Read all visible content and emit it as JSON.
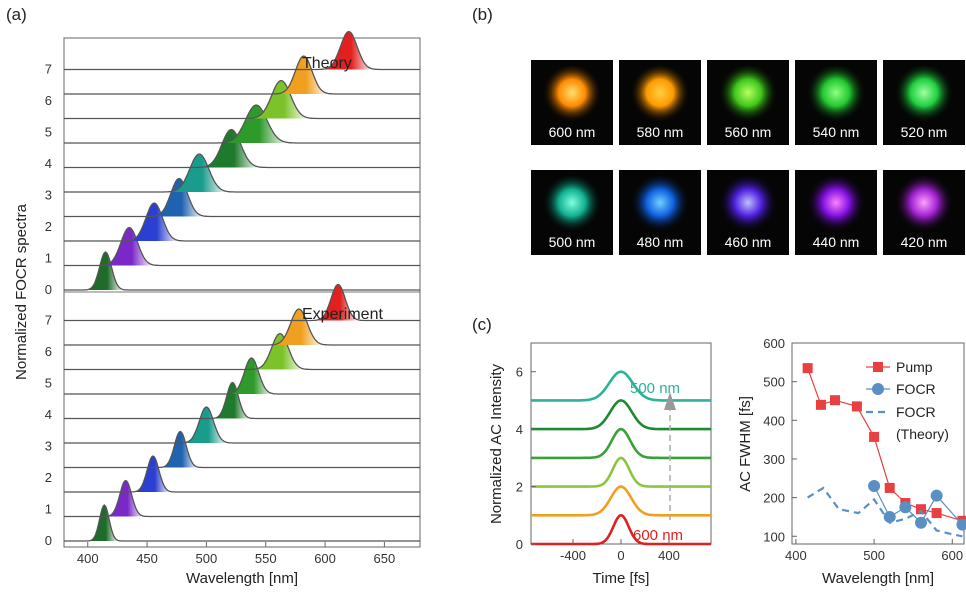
{
  "panels": {
    "a": "(a)",
    "b": "(b)",
    "c": "(c)"
  },
  "chart_data": [
    {
      "type": "line",
      "panel": "(a)",
      "title": "",
      "xlabel": "Wavelength [nm]",
      "ylabel": "Normalized FOCR spectra",
      "xlim": [
        380,
        680
      ],
      "xticks": [
        400,
        450,
        500,
        550,
        600,
        650
      ],
      "yticks": [
        0,
        1,
        2,
        3,
        4,
        5,
        6,
        7
      ],
      "subpanels": [
        {
          "label": "Theory",
          "series": [
            {
              "offset": 7,
              "peak_nm": 415,
              "width_nm": 5,
              "color": "#1f6b2a"
            },
            {
              "offset": 6,
              "peak_nm": 435,
              "width_nm": 7,
              "color": "#7a28c8"
            },
            {
              "offset": 5,
              "peak_nm": 456,
              "width_nm": 7,
              "color": "#2b3fd0"
            },
            {
              "offset": 4,
              "peak_nm": 477,
              "width_nm": 7,
              "color": "#1f62b0"
            },
            {
              "offset": 3.5,
              "peak_nm": 494,
              "width_nm": 8,
              "color": "#1a9c8c"
            },
            {
              "offset": 3,
              "peak_nm": 521,
              "width_nm": 8,
              "color": "#1e7a2c"
            },
            {
              "offset": 2.5,
              "peak_nm": 542,
              "width_nm": 9,
              "color": "#2e9a2a"
            },
            {
              "offset": 2,
              "peak_nm": 563,
              "width_nm": 8,
              "color": "#7cc22a"
            },
            {
              "offset": 1,
              "peak_nm": 582,
              "width_nm": 7,
              "color": "#f0a020"
            },
            {
              "offset": 0,
              "peak_nm": 620,
              "width_nm": 7,
              "color": "#e32020"
            }
          ]
        },
        {
          "label": "Experiment",
          "series": [
            {
              "offset": 7,
              "peak_nm": 414,
              "width_nm": 4,
              "color": "#1f6b2a"
            },
            {
              "offset": 6,
              "peak_nm": 432,
              "width_nm": 5,
              "color": "#7a28c8"
            },
            {
              "offset": 5,
              "peak_nm": 455,
              "width_nm": 5,
              "color": "#2b3fd0"
            },
            {
              "offset": 4,
              "peak_nm": 478,
              "width_nm": 5,
              "color": "#1f62b0"
            },
            {
              "offset": 3.5,
              "peak_nm": 500,
              "width_nm": 6,
              "color": "#1a9c8c"
            },
            {
              "offset": 3,
              "peak_nm": 522,
              "width_nm": 5,
              "color": "#1e7a2c"
            },
            {
              "offset": 2.5,
              "peak_nm": 538,
              "width_nm": 6,
              "color": "#2e9a2a"
            },
            {
              "offset": 2,
              "peak_nm": 562,
              "width_nm": 7,
              "color": "#7cc22a"
            },
            {
              "offset": 1,
              "peak_nm": 578,
              "width_nm": 7,
              "color": "#f0a020"
            },
            {
              "offset": 0,
              "peak_nm": 611,
              "width_nm": 6,
              "color": "#e32020"
            }
          ]
        }
      ]
    },
    {
      "type": "line",
      "panel": "(c)",
      "title": "",
      "xlabel": "Time [fs]",
      "ylabel": "Normalized AC Intensity",
      "xlim": [
        -750,
        750
      ],
      "ylim": [
        0,
        7
      ],
      "xticks": [
        -400,
        0,
        400
      ],
      "yticks": [
        0,
        2,
        4,
        6
      ],
      "annotations": [
        "500 nm",
        "600 nm"
      ],
      "series": [
        {
          "offset": 0,
          "fwhm_fs": 150,
          "color": "#e02020"
        },
        {
          "offset": 1,
          "fwhm_fs": 200,
          "color": "#f0a020"
        },
        {
          "offset": 2,
          "fwhm_fs": 160,
          "color": "#8cc63e"
        },
        {
          "offset": 3,
          "fwhm_fs": 180,
          "color": "#3aa03a"
        },
        {
          "offset": 4,
          "fwhm_fs": 210,
          "color": "#1c8a30"
        },
        {
          "offset": 5,
          "fwhm_fs": 230,
          "color": "#2bb39a"
        }
      ]
    },
    {
      "type": "line",
      "panel": "(c)",
      "title": "",
      "xlabel": "Wavelength [nm]",
      "ylabel": "AC FWHM [fs]",
      "xlim": [
        395,
        615
      ],
      "ylim": [
        80,
        600
      ],
      "xticks": [
        400,
        500,
        600
      ],
      "yticks": [
        100,
        200,
        300,
        400,
        500,
        600
      ],
      "legend": "top-right",
      "series": [
        {
          "name": "Pump",
          "color": "#e84040",
          "marker": "square",
          "x": [
            415,
            432,
            450,
            478,
            500,
            520,
            540,
            560,
            580,
            613
          ],
          "y": [
            535,
            440,
            452,
            436,
            357,
            225,
            186,
            170,
            160,
            140
          ]
        },
        {
          "name": "FOCR",
          "color": "#5a8fc4",
          "marker": "circle",
          "x": [
            500,
            520,
            540,
            560,
            580,
            613
          ],
          "y": [
            230,
            150,
            175,
            135,
            205,
            130
          ]
        },
        {
          "name": "FOCR\n(Theory)",
          "legend_lines": [
            "FOCR",
            "(Theory)"
          ],
          "color": "#5a8fc4",
          "marker": "dashed",
          "x": [
            415,
            435,
            455,
            480,
            500,
            520,
            540,
            560,
            580,
            600,
            613
          ],
          "y": [
            200,
            225,
            170,
            160,
            195,
            135,
            145,
            165,
            115,
            105,
            100
          ]
        }
      ]
    }
  ],
  "images": {
    "row1": [
      {
        "label": "600 nm",
        "color": "#ff8a00",
        "core": "#ffe070"
      },
      {
        "label": "580 nm",
        "color": "#ff9a00",
        "core": "#ffd040"
      },
      {
        "label": "560 nm",
        "color": "#3ec81a",
        "core": "#b8ff60"
      },
      {
        "label": "540 nm",
        "color": "#22c830",
        "core": "#90ff80"
      },
      {
        "label": "520 nm",
        "color": "#20d040",
        "core": "#a0ffa0"
      }
    ],
    "row2": [
      {
        "label": "500 nm",
        "color": "#10b090",
        "core": "#80ffe0"
      },
      {
        "label": "480 nm",
        "color": "#1060e0",
        "core": "#70d0ff"
      },
      {
        "label": "460 nm",
        "color": "#5020e0",
        "core": "#c0c0ff"
      },
      {
        "label": "440 nm",
        "color": "#8010e0",
        "core": "#ff80ff"
      },
      {
        "label": "420 nm",
        "color": "#a020d0",
        "core": "#ffa0ff"
      }
    ]
  }
}
